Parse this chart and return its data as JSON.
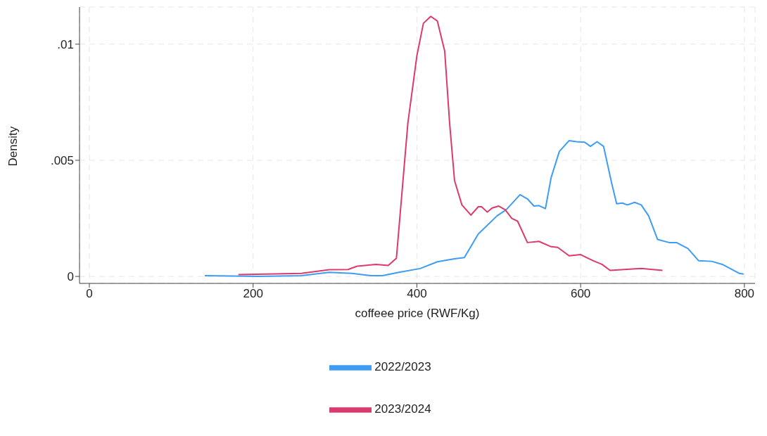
{
  "chart_data": {
    "type": "line",
    "xlabel": "coffeee price (RWF/Kg)",
    "ylabel": "Density",
    "xlim": [
      -12,
      813
    ],
    "xticks": [
      0,
      200,
      400,
      600,
      800
    ],
    "ylim": [
      -0.0003,
      0.0116
    ],
    "yticks": [
      {
        "value": 0,
        "label": "0"
      },
      {
        "value": 0.005,
        "label": ".005"
      },
      {
        "value": 0.01,
        "label": ".01"
      }
    ],
    "grid": true,
    "legend": "bottom",
    "marker": "none",
    "line_style": "solid",
    "series": [
      {
        "name": "2022/2023",
        "color": "#3d9cf5",
        "x": [
          141,
          207,
          259,
          293,
          321,
          344,
          358,
          378,
          404,
          425,
          446,
          458,
          475,
          498,
          509,
          526,
          535,
          543,
          549,
          557,
          564,
          574,
          586,
          595,
          605,
          612,
          620,
          628,
          633,
          638,
          644,
          651,
          657,
          666,
          674,
          683,
          694,
          708,
          717,
          731,
          744,
          760,
          773,
          794,
          799
        ],
        "values": [
          3e-05,
          0,
          3e-05,
          0.00018,
          0.00013,
          3e-05,
          3e-05,
          0.00018,
          0.00034,
          0.00063,
          0.00076,
          0.00081,
          0.00183,
          0.00261,
          0.00287,
          0.00352,
          0.00334,
          0.00303,
          0.00305,
          0.00292,
          0.00426,
          0.00538,
          0.00585,
          0.0058,
          0.00578,
          0.0056,
          0.0058,
          0.0056,
          0.0048,
          0.004,
          0.00313,
          0.00316,
          0.00308,
          0.00319,
          0.00308,
          0.00261,
          0.00159,
          0.00146,
          0.00146,
          0.0012,
          0.00068,
          0.00065,
          0.00052,
          0.00013,
          0.0001
        ]
      },
      {
        "name": "2023/2024",
        "color": "#dc3a6c",
        "x": [
          182,
          259,
          293,
          316,
          327,
          350,
          365,
          375,
          389,
          400,
          408,
          417,
          425,
          434,
          440,
          446,
          455,
          466,
          475,
          479,
          486,
          492,
          500,
          508,
          516,
          523,
          535,
          549,
          564,
          572,
          586,
          600,
          615,
          626,
          636,
          660,
          674,
          700
        ],
        "values": [
          8e-05,
          0.00013,
          0.00029,
          0.0003,
          0.00044,
          0.00052,
          0.00047,
          0.00078,
          0.0066,
          0.0095,
          0.0109,
          0.0112,
          0.011,
          0.0097,
          0.0066,
          0.00413,
          0.00308,
          0.00264,
          0.003,
          0.003,
          0.00277,
          0.00295,
          0.00303,
          0.00287,
          0.0025,
          0.00238,
          0.00146,
          0.00151,
          0.00128,
          0.00125,
          0.00089,
          0.00094,
          0.00068,
          0.00052,
          0.00026,
          0.00031,
          0.00034,
          0.00026
        ]
      }
    ]
  }
}
